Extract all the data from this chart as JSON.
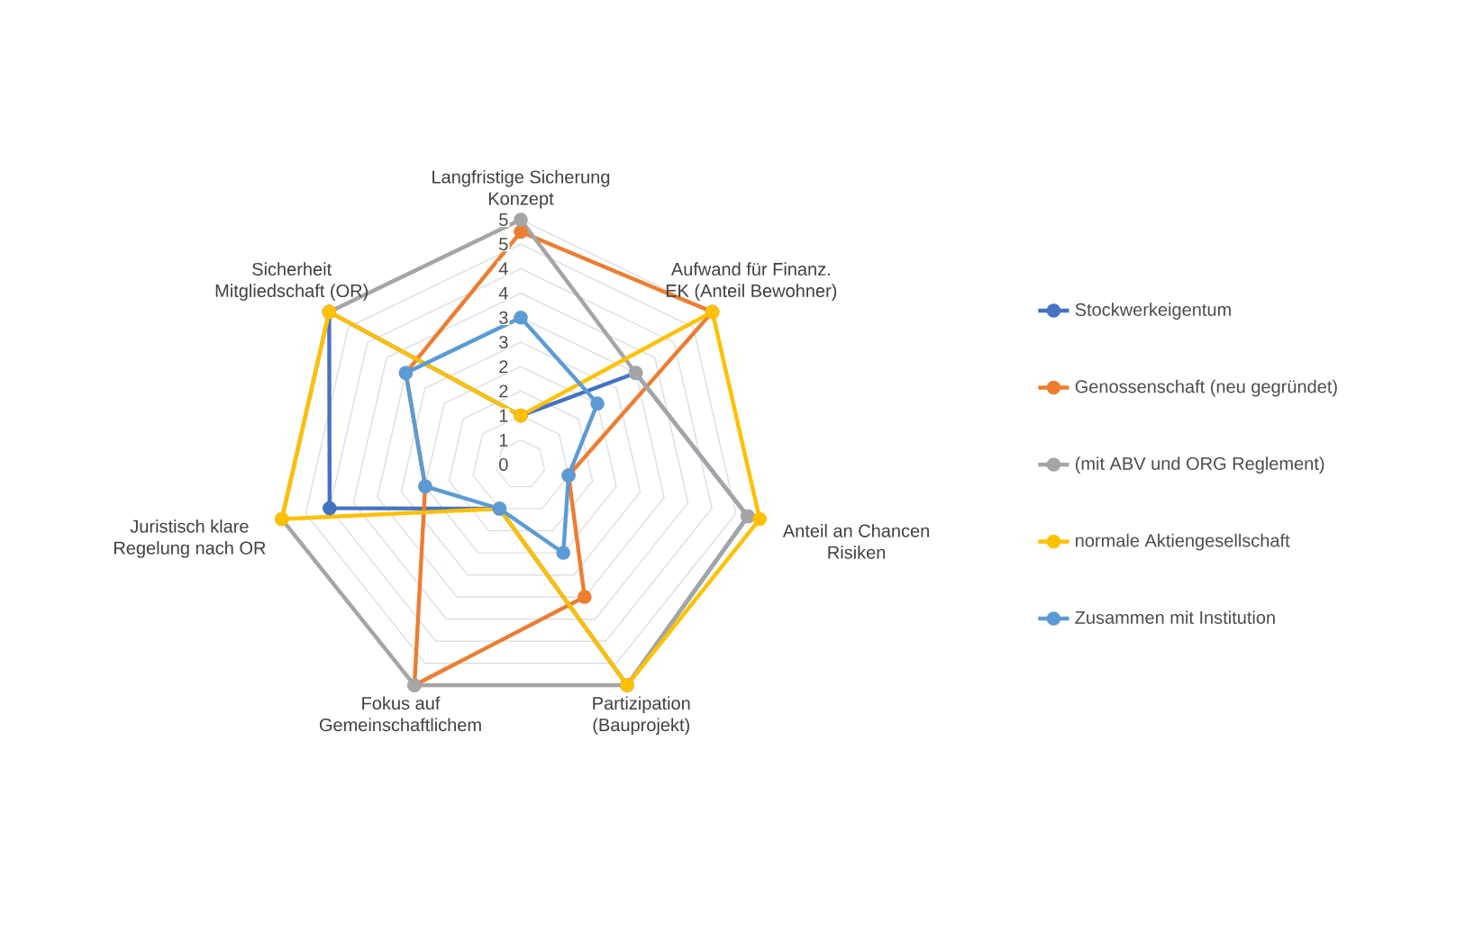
{
  "chart_data": {
    "type": "radar",
    "categories": [
      "Langfristige Sicherung Konzept",
      "Aufwand für Finanz. EK (Anteil Bewohner)",
      "Anteil an Chancen Risiken",
      "Partizipation (Bauprojekt)",
      "Fokus auf Gemeinschaftlichem",
      "Juristisch klare Regelung nach OR",
      "Sicherheit Mitgliedschaft (OR)"
    ],
    "series": [
      {
        "name": "Stockwerkeigentum",
        "color": "#4472c4",
        "values": [
          1,
          3,
          4.75,
          5,
          1,
          4,
          5
        ]
      },
      {
        "name": "Genossenschaft (neu gegründet)",
        "color": "#ed7d31",
        "values": [
          4.75,
          5,
          1,
          3,
          5,
          2,
          3
        ]
      },
      {
        "name": "(mit ABV und ORG Reglement)",
        "color": "#a5a5a5",
        "values": [
          5,
          3,
          4.75,
          5,
          5,
          5,
          5
        ]
      },
      {
        "name": "normale Aktiengesellschaft",
        "color": "#ffc000",
        "values": [
          1,
          5,
          5,
          5,
          1,
          5,
          5
        ]
      },
      {
        "name": "Zusammen mit Institution",
        "color": "#5b9bd5",
        "values": [
          3,
          2,
          1,
          2,
          1,
          2,
          3
        ]
      }
    ],
    "ylim": [
      0,
      5
    ],
    "yticks": [
      0,
      {
        "value": 0.5,
        "label": "1"
      },
      1,
      {
        "value": 1.5,
        "label": "2"
      },
      2,
      {
        "value": 2.5,
        "label": "3"
      },
      3,
      {
        "value": 3.5,
        "label": "4"
      },
      4,
      {
        "value": 4.5,
        "label": "5"
      },
      5
    ],
    "grid": true,
    "legend": "right",
    "marker": "circle",
    "line_style": "solid"
  }
}
